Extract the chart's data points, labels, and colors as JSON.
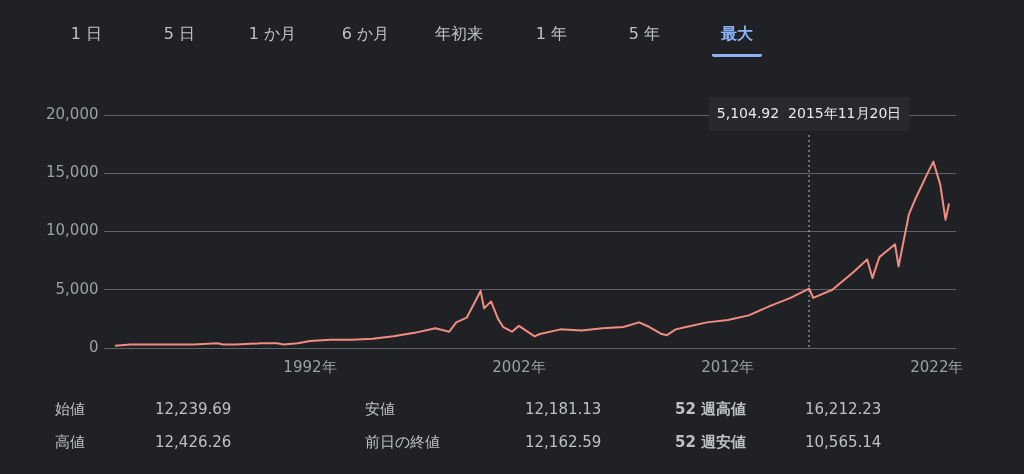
{
  "chart_data": {
    "type": "line",
    "color": "#f28b82",
    "marker": "none",
    "grid": "y",
    "legend": false,
    "x": [
      "1982-09",
      "1983-06",
      "1984-07",
      "1985-06",
      "1986-06",
      "1987-08",
      "1987-11",
      "1988-06",
      "1989-09",
      "1990-06",
      "1990-10",
      "1991-06",
      "1992-01",
      "1993-01",
      "1994-01",
      "1995-01",
      "1996-01",
      "1997-01",
      "1998-01",
      "1998-09",
      "1999-01",
      "1999-07",
      "2000-03",
      "2000-05",
      "2000-09",
      "2001-01",
      "2001-04",
      "2001-09",
      "2002-01",
      "2002-07",
      "2002-10",
      "2003-01",
      "2004-01",
      "2005-01",
      "2006-01",
      "2007-01",
      "2007-10",
      "2008-04",
      "2008-11",
      "2009-02",
      "2009-07",
      "2010-01",
      "2011-01",
      "2012-01",
      "2013-01",
      "2014-01",
      "2015-01",
      "2015-11-20",
      "2016-02",
      "2017-01",
      "2018-01",
      "2018-09",
      "2018-12",
      "2019-04",
      "2020-01",
      "2020-03",
      "2020-09",
      "2021-01",
      "2021-07",
      "2021-11",
      "2022-03",
      "2022-06",
      "2022-08"
    ],
    "values": [
      200,
      300,
      300,
      300,
      300,
      400,
      300,
      300,
      400,
      400,
      300,
      400,
      600,
      700,
      700,
      800,
      1000,
      1300,
      1700,
      1400,
      2200,
      2600,
      4900,
      3400,
      4000,
      2500,
      1800,
      1400,
      1900,
      1300,
      1000,
      1200,
      1600,
      1500,
      1700,
      1800,
      2200,
      1800,
      1200,
      1100,
      1600,
      1800,
      2200,
      2400,
      2800,
      3600,
      4300,
      5104.92,
      4300,
      5000,
      6500,
      7600,
      6000,
      7800,
      8900,
      7000,
      11500,
      12900,
      14800,
      16000,
      14000,
      11000,
      12400
    ],
    "xlim": [
      "1982-03",
      "2022-12"
    ],
    "xticks": [
      {
        "value": "1992",
        "label": "1992年"
      },
      {
        "value": "2002",
        "label": "2002年"
      },
      {
        "value": "2012",
        "label": "2012年"
      },
      {
        "value": "2022",
        "label": "2022年"
      }
    ],
    "ylim": [
      0,
      20000
    ],
    "yticks": [
      0,
      {
        "value": 5000,
        "label": "5,000"
      },
      {
        "value": 10000,
        "label": "10,000"
      },
      {
        "value": 15000,
        "label": "15,000"
      },
      {
        "value": 20000,
        "label": "20,000"
      }
    ],
    "ref_lines": [
      {
        "axis": "x",
        "value": "2015-11-20",
        "label": "5,104.92  2015年11月20日",
        "line_style": "dotted",
        "color": "#bdc1c6"
      }
    ],
    "annotations": [
      "1 日",
      "5 日",
      "1 か月",
      "6 か月",
      "年初来",
      "1 年",
      "5 年",
      "最大",
      "始値",
      "12,239.69",
      "安値",
      "12,181.13",
      "52 週高値",
      "16,212.23",
      "高値",
      "12,426.26",
      "前日の終値",
      "12,162.59",
      "52 週安値",
      "10,565.14"
    ]
  }
}
